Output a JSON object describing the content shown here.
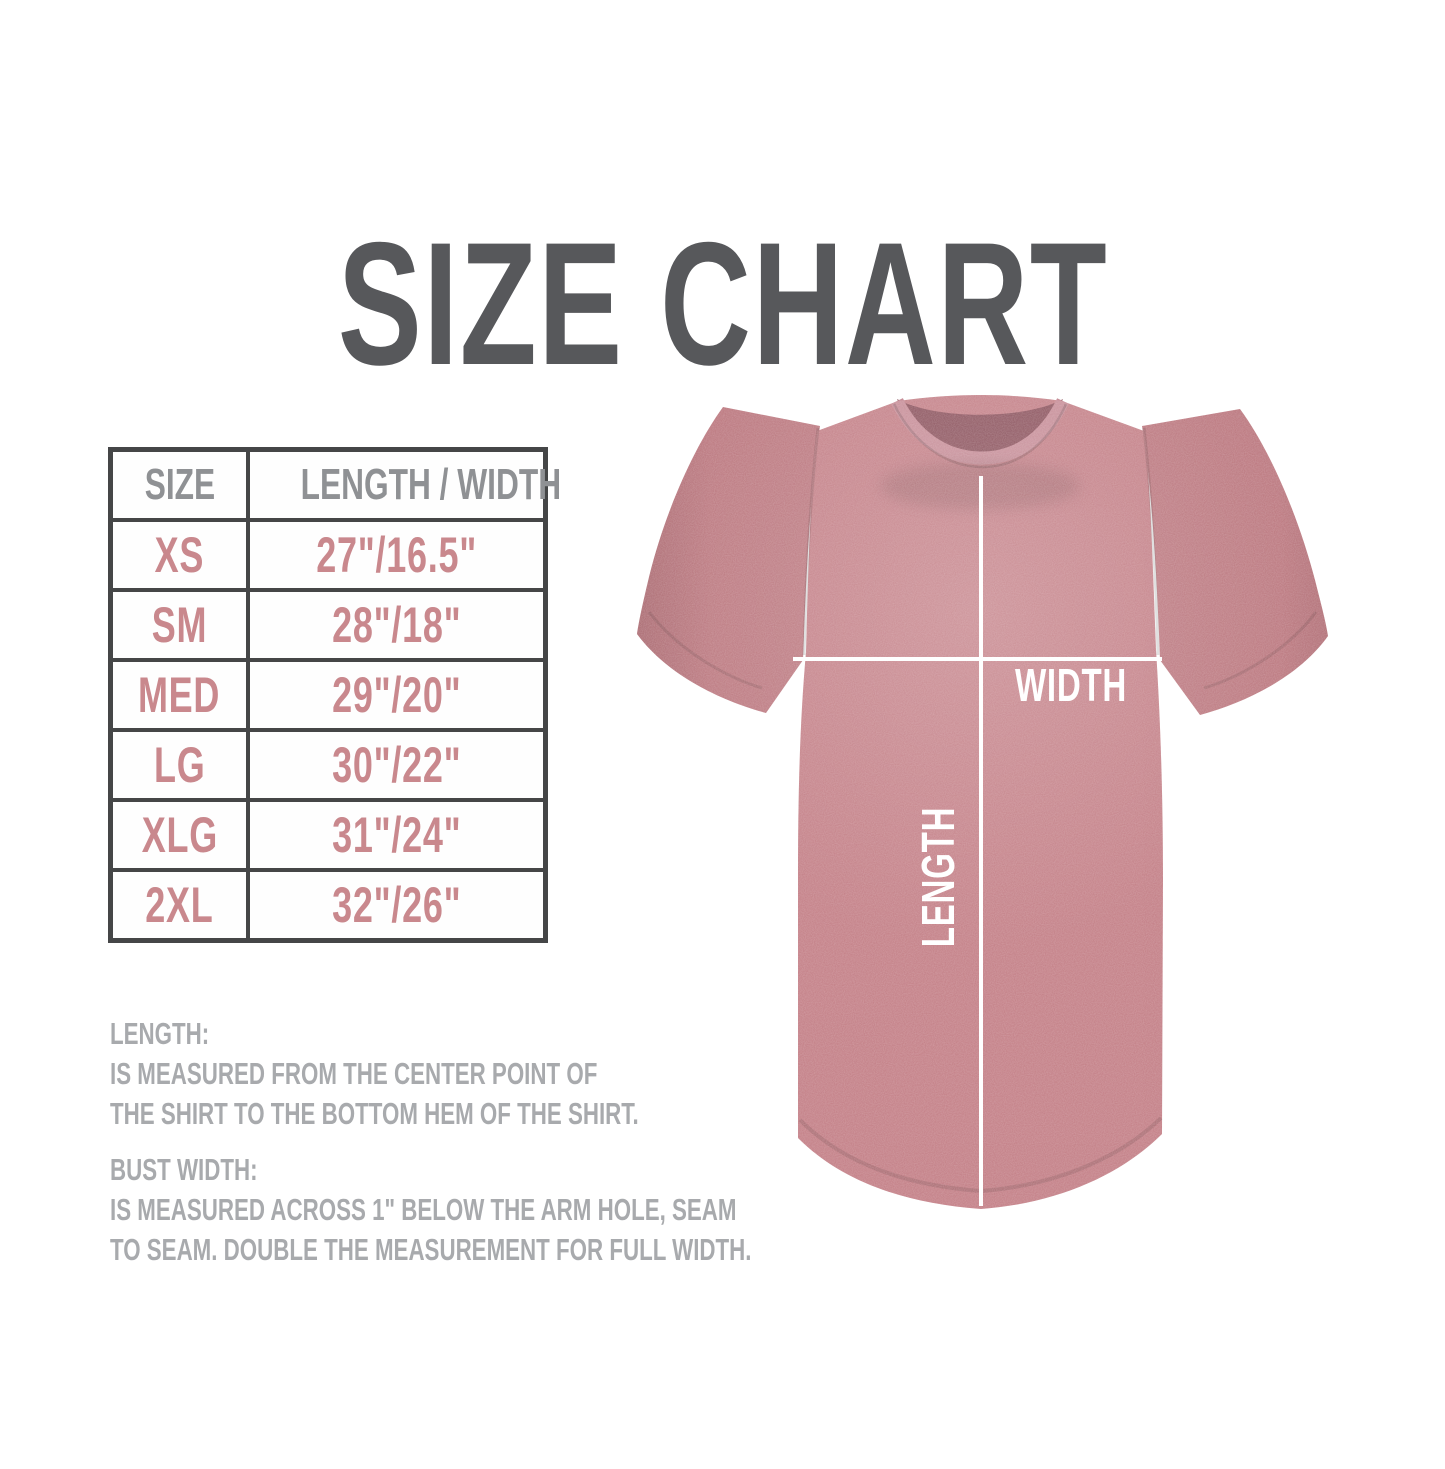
{
  "title": "SIZE CHART",
  "table": {
    "headers": [
      "SIZE",
      "LENGTH / WIDTH"
    ],
    "rows": [
      {
        "size": "XS",
        "measurement": "27\"/16.5\""
      },
      {
        "size": "SM",
        "measurement": "28\"/18\""
      },
      {
        "size": "MED",
        "measurement": "29\"/20\""
      },
      {
        "size": "LG",
        "measurement": "30\"/22\""
      },
      {
        "size": "XLG",
        "measurement": "31\"/24\""
      },
      {
        "size": "2XL",
        "measurement": "32\"/26\""
      }
    ]
  },
  "notes": {
    "length_note": {
      "heading": "LENGTH:",
      "lines": [
        "IS MEASURED FROM THE CENTER POINT OF",
        "THE SHIRT TO THE BOTTOM HEM OF THE SHIRT."
      ]
    },
    "bust_width_note": {
      "heading": "BUST WIDTH:",
      "lines": [
        "IS MEASURED ACROSS 1\" BELOW THE ARM HOLE, SEAM",
        "TO SEAM. DOUBLE THE MEASUREMENT FOR FULL WIDTH."
      ]
    }
  },
  "diagram": {
    "width_label": "WIDTH",
    "length_label": "LENGTH"
  },
  "colors": {
    "title_gray": "#57585b",
    "table_border": "#454647",
    "header_text_gray": "#8f9194",
    "accent_pink": "#c9888d",
    "note_gray": "#a8aaad",
    "shirt_mauve": "#c5838a",
    "measure_line_white": "#ffffff"
  },
  "chart_data": {
    "type": "table",
    "title": "SIZE CHART",
    "columns": [
      "SIZE",
      "LENGTH / WIDTH"
    ],
    "rows": [
      [
        "XS",
        "27\"/16.5\""
      ],
      [
        "SM",
        "28\"/18\""
      ],
      [
        "MED",
        "29\"/20\""
      ],
      [
        "LG",
        "30\"/22\""
      ],
      [
        "XLG",
        "31\"/24\""
      ],
      [
        "2XL",
        "32\"/26\""
      ]
    ],
    "sizes": [
      "XS",
      "SM",
      "MED",
      "LG",
      "XLG",
      "2XL"
    ],
    "length_in": [
      27,
      28,
      29,
      30,
      31,
      32
    ],
    "width_in": [
      16.5,
      18,
      20,
      22,
      24,
      26
    ]
  }
}
